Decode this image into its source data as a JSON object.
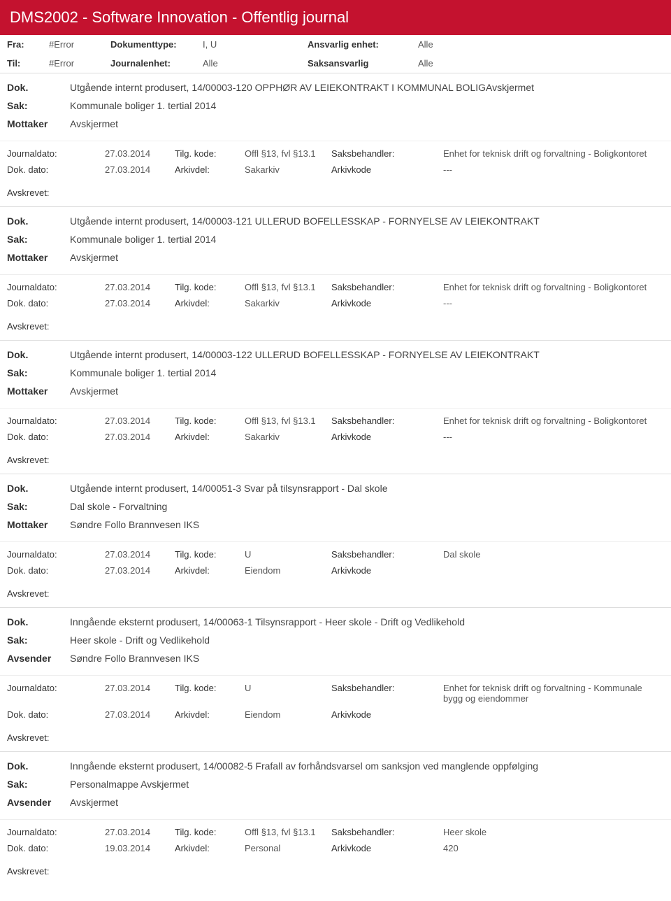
{
  "header": "DMS2002 - Software Innovation - Offentlig journal",
  "filters": {
    "fra_l": "Fra:",
    "fra_v": "#Error",
    "til_l": "Til:",
    "til_v": "#Error",
    "dt_l": "Dokumenttype:",
    "dt_v": "I, U",
    "je_l": "Journalenhet:",
    "je_v": "Alle",
    "ae_l": "Ansvarlig enhet:",
    "ae_v": "Alle",
    "sa_l": "Saksansvarlig",
    "sa_v": "Alle"
  },
  "labels": {
    "dok": "Dok.",
    "sak": "Sak:",
    "mottaker": "Mottaker",
    "avsender": "Avsender",
    "jd": "Journaldato:",
    "dd": "Dok. dato:",
    "tk": "Tilg. kode:",
    "ad": "Arkivdel:",
    "sb": "Saksbehandler:",
    "ak": "Arkivkode",
    "av": "Avskrevet:"
  },
  "entries": [
    {
      "dok": "Utgående internt produsert, 14/00003-120 OPPHØR AV LEIEKONTRAKT I KOMMUNAL BOLIGAvskjermet",
      "sak": "Kommunale boliger 1. tertial 2014",
      "party_l": "Mottaker",
      "party_v": "Avskjermet",
      "jd": "27.03.2014",
      "dd": "27.03.2014",
      "tk": "Offl §13, fvl §13.1",
      "ad": "Sakarkiv",
      "sb": "Enhet for teknisk drift og forvaltning - Boligkontoret",
      "ak": "---"
    },
    {
      "dok": "Utgående internt produsert, 14/00003-121 ULLERUD BOFELLESSKAP - FORNYELSE AV LEIEKONTRAKT",
      "sak": "Kommunale boliger 1. tertial 2014",
      "party_l": "Mottaker",
      "party_v": "Avskjermet",
      "jd": "27.03.2014",
      "dd": "27.03.2014",
      "tk": "Offl §13, fvl §13.1",
      "ad": "Sakarkiv",
      "sb": "Enhet for teknisk drift og forvaltning - Boligkontoret",
      "ak": "---"
    },
    {
      "dok": "Utgående internt produsert, 14/00003-122 ULLERUD BOFELLESSKAP - FORNYELSE AV LEIEKONTRAKT",
      "sak": "Kommunale boliger 1. tertial 2014",
      "party_l": "Mottaker",
      "party_v": "Avskjermet",
      "jd": "27.03.2014",
      "dd": "27.03.2014",
      "tk": "Offl §13, fvl §13.1",
      "ad": "Sakarkiv",
      "sb": "Enhet for teknisk drift og forvaltning - Boligkontoret",
      "ak": "---"
    },
    {
      "dok": "Utgående internt produsert, 14/00051-3 Svar på tilsynsrapport - Dal skole",
      "sak": "Dal skole - Forvaltning",
      "party_l": "Mottaker",
      "party_v": "Søndre Follo Brannvesen IKS",
      "jd": "27.03.2014",
      "dd": "27.03.2014",
      "tk": "U",
      "ad": "Eiendom",
      "sb": "Dal skole",
      "ak": ""
    },
    {
      "dok": "Inngående eksternt produsert, 14/00063-1 Tilsynsrapport -  Heer skole - Drift og Vedlikehold",
      "sak": "Heer skole - Drift og Vedlikehold",
      "party_l": "Avsender",
      "party_v": "Søndre Follo Brannvesen IKS",
      "jd": "27.03.2014",
      "dd": "27.03.2014",
      "tk": "U",
      "ad": "Eiendom",
      "sb": "Enhet for teknisk drift og forvaltning - Kommunale bygg og eiendommer",
      "ak": ""
    },
    {
      "dok": "Inngående eksternt produsert, 14/00082-5 Frafall av forhåndsvarsel om sanksjon ved manglende oppfølging",
      "sak": "Personalmappe Avskjermet",
      "party_l": "Avsender",
      "party_v": "Avskjermet",
      "jd": "27.03.2014",
      "dd": "19.03.2014",
      "tk": "Offl §13, fvl §13.1",
      "ad": "Personal",
      "sb": "Heer skole",
      "ak": "420"
    }
  ]
}
